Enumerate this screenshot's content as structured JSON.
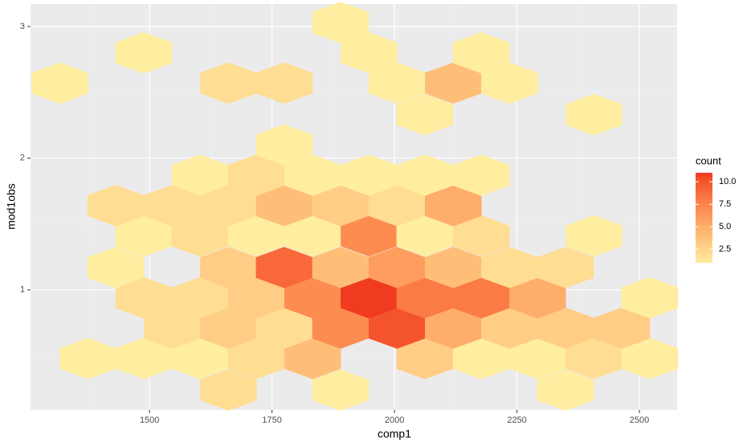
{
  "chart_data": {
    "type": "hexbin",
    "x_label": "comp1",
    "y_label": "mod1obs",
    "legend_title": "count",
    "xlim": [
      1257,
      2577
    ],
    "ylim": [
      0.09,
      3.17
    ],
    "xticks": [
      1500,
      1750,
      2000,
      2250,
      2500
    ],
    "yticks": [
      1,
      2,
      3
    ],
    "grid": true,
    "fill_low": "#FFEDA0",
    "fill_high": "#F03B20",
    "fill_lim": [
      1,
      11
    ],
    "legend_ticks": [
      {
        "value": 2.5,
        "label": "2.5"
      },
      {
        "value": 5,
        "label": "5.0"
      },
      {
        "value": 7.5,
        "label": "7.5"
      },
      {
        "value": 10,
        "label": "10.0"
      }
    ],
    "x": [
      1661,
      1890,
      2349,
      1374,
      1488,
      1603,
      1718,
      1833,
      2062,
      2177,
      2292,
      2407,
      2521,
      1546,
      1661,
      1775,
      1890,
      2005,
      2120,
      2235,
      2349,
      2464,
      1488,
      1603,
      1718,
      1833,
      1948,
      2062,
      2177,
      2292,
      2521,
      1431,
      1661,
      1775,
      1890,
      2005,
      2120,
      2235,
      2349,
      1488,
      1603,
      1718,
      1833,
      1948,
      2062,
      2177,
      2407,
      1431,
      1546,
      1661,
      1775,
      1890,
      2005,
      2120,
      1603,
      1718,
      1833,
      1948,
      2062,
      2177,
      1775,
      2062,
      2407,
      1317,
      1661,
      1775,
      2005,
      2120,
      2235,
      1488,
      1948,
      2177,
      1890
    ],
    "y": [
      0.24,
      0.24,
      0.24,
      0.48,
      0.48,
      0.48,
      0.48,
      0.48,
      0.48,
      0.48,
      0.48,
      0.48,
      0.48,
      0.71,
      0.71,
      0.71,
      0.71,
      0.71,
      0.71,
      0.71,
      0.71,
      0.71,
      0.94,
      0.94,
      0.94,
      0.94,
      0.94,
      0.94,
      0.94,
      0.94,
      0.94,
      1.17,
      1.17,
      1.17,
      1.17,
      1.17,
      1.17,
      1.17,
      1.17,
      1.41,
      1.41,
      1.41,
      1.41,
      1.41,
      1.41,
      1.41,
      1.41,
      1.64,
      1.64,
      1.64,
      1.64,
      1.64,
      1.64,
      1.64,
      1.87,
      1.87,
      1.87,
      1.87,
      1.87,
      1.87,
      2.1,
      2.33,
      2.33,
      2.57,
      2.57,
      2.57,
      2.57,
      2.57,
      2.57,
      2.8,
      2.8,
      2.8,
      3.03
    ],
    "values": [
      2,
      1,
      1,
      1,
      1,
      1,
      2,
      4,
      3,
      1,
      1,
      2,
      1,
      2,
      3,
      2,
      7,
      10,
      5,
      3,
      3,
      3,
      2,
      2,
      3,
      7,
      11,
      8,
      8,
      5,
      1,
      1,
      3,
      9,
      4,
      6,
      4,
      2,
      2,
      1,
      2,
      1,
      1,
      7,
      1,
      2,
      1,
      2,
      2,
      2,
      4,
      3,
      2,
      5,
      1,
      2,
      1,
      1,
      1,
      1,
      1,
      1,
      1,
      1,
      2,
      2,
      1,
      4,
      1,
      1,
      1,
      1,
      1
    ]
  }
}
